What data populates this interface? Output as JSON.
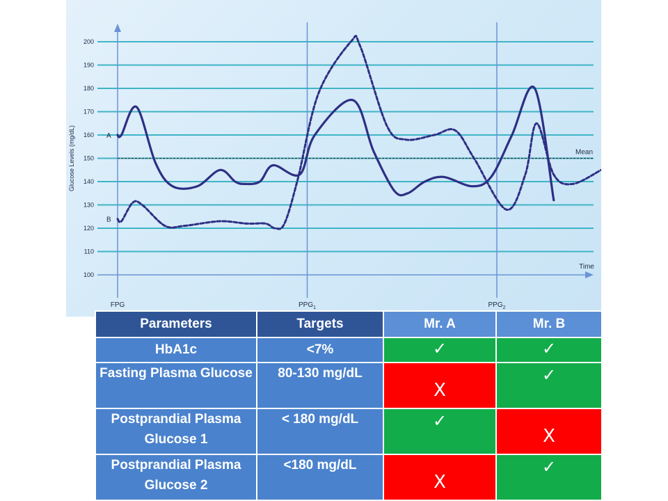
{
  "chart_data": {
    "type": "line",
    "ylabel": "Glucose Levels (mg/dL)",
    "xlabel": "Time",
    "ylim": [
      100,
      200
    ],
    "yticks": [
      100,
      110,
      120,
      130,
      140,
      150,
      160,
      170,
      180,
      190,
      200
    ],
    "xticks": [
      "FPG",
      "PPG1",
      "PPG2"
    ],
    "mean_label": "Mean",
    "mean_value": 150,
    "grid": true,
    "series": [
      {
        "name": "A",
        "style": "solid",
        "color": "#2e2f84",
        "x": [
          0,
          0.02,
          0.1,
          0.2,
          0.29,
          0.42,
          0.54,
          0.62,
          0.67,
          0.75,
          0.82,
          0.96,
          1.04,
          1.24,
          1.35,
          1.46,
          1.53,
          1.62,
          1.72,
          1.87,
          1.97,
          2.08,
          2.2,
          2.3
        ],
        "y": [
          160,
          160,
          172,
          148,
          138,
          138,
          145,
          140,
          139,
          140,
          147,
          143,
          160,
          175,
          153,
          136,
          135,
          140,
          142,
          138,
          142,
          160,
          180,
          132
        ]
      },
      {
        "name": "B",
        "style": "dashed",
        "color": "#2e2f84",
        "x": [
          0,
          0.02,
          0.08,
          0.13,
          0.25,
          0.35,
          0.54,
          0.68,
          0.78,
          0.83,
          0.88,
          0.95,
          1.06,
          1.23,
          1.28,
          1.42,
          1.52,
          1.67,
          1.78,
          1.88,
          2.05,
          2.15,
          2.21,
          2.3,
          2.4,
          2.55
        ],
        "y": [
          124,
          123,
          131,
          130,
          121,
          121,
          123,
          122,
          122,
          120,
          122,
          141,
          178,
          200,
          198,
          164,
          158,
          160,
          162,
          150,
          128,
          143,
          165,
          143,
          139,
          145
        ]
      }
    ]
  },
  "table": {
    "headers": [
      "Parameters",
      "Targets",
      "Mr. A",
      "Mr. B"
    ],
    "rows": [
      {
        "parameter": "HbA1c",
        "target": "<7%",
        "mr_a": "✓",
        "mr_b": "✓",
        "mr_a_status": "met",
        "mr_b_status": "met"
      },
      {
        "parameter": "Fasting Plasma Glucose",
        "target": "80-130 mg/dL",
        "mr_a": "X",
        "mr_b": "✓",
        "mr_a_status": "not-met",
        "mr_b_status": "met"
      },
      {
        "parameter": "Postprandial Plasma Glucose 1",
        "target": "< 180 mg/dL",
        "mr_a": "✓",
        "mr_b": "X",
        "mr_a_status": "met",
        "mr_b_status": "not-met"
      },
      {
        "parameter": "Postprandial Plasma Glucose 2",
        "target": "<180 mg/dL",
        "mr_a": "X",
        "mr_b": "✓",
        "mr_a_status": "not-met",
        "mr_b_status": "met"
      }
    ]
  },
  "colors": {
    "header_dark": "#2f5597",
    "header_light": "#5b8fd6",
    "cell_blue": "#4a82cd",
    "met_green": "#13ac4a",
    "not_met_red": "#fe0000",
    "grid_line": "#3fb4c6",
    "curve": "#2e2f84",
    "axis": "#6b93d6"
  }
}
